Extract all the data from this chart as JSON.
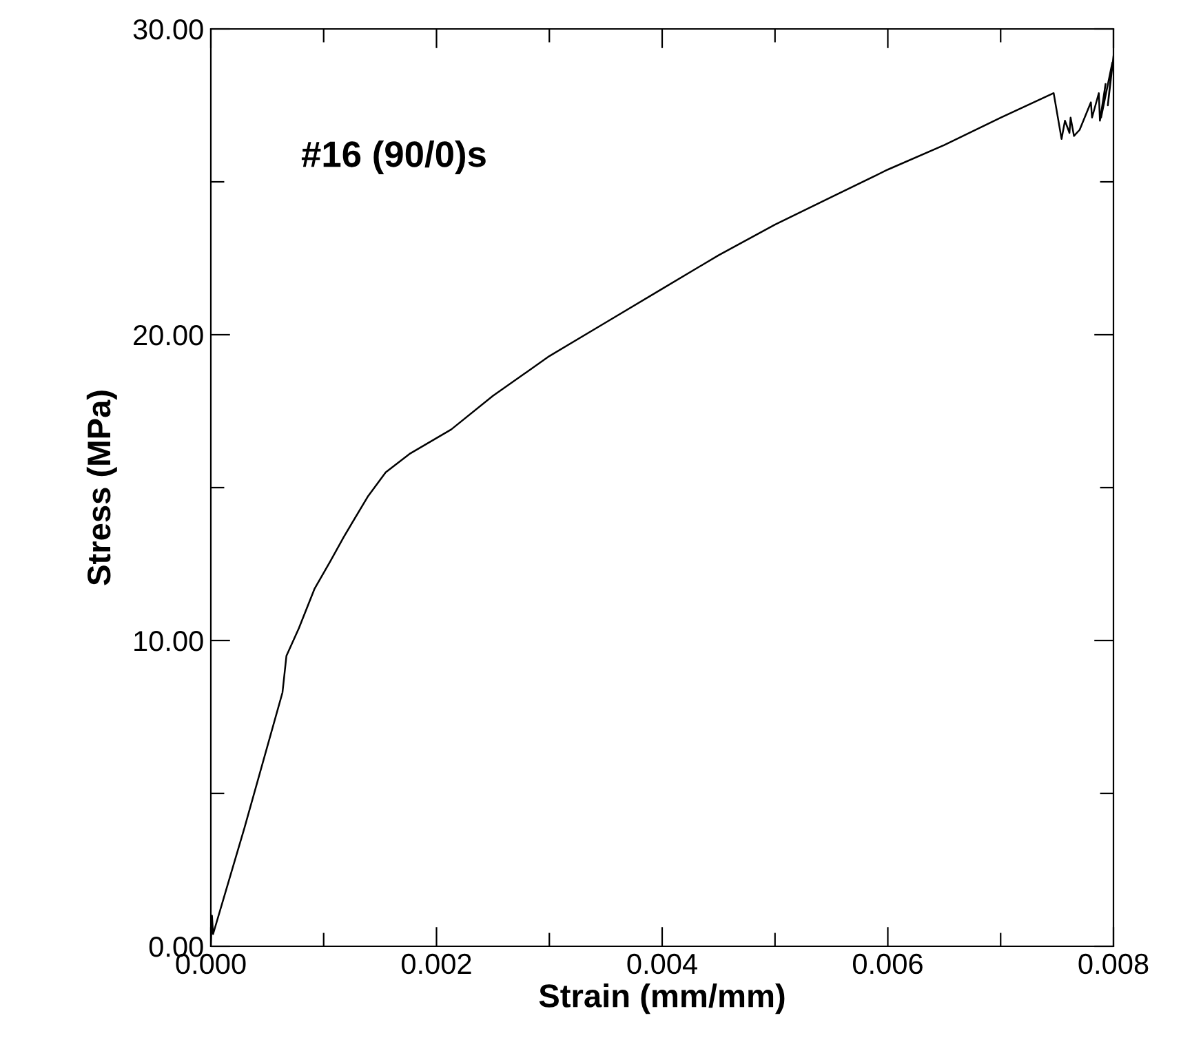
{
  "chart_data": {
    "type": "line",
    "xlabel": "Strain (mm/mm)",
    "ylabel": "Stress (MPa)",
    "annotations": [
      "#16 (90/0)s"
    ],
    "xlim": [
      0,
      0.008
    ],
    "ylim": [
      0,
      30
    ],
    "xticks": [
      {
        "value": 0,
        "label": "0.000"
      },
      {
        "value": 0.001,
        "label": null
      },
      {
        "value": 0.002,
        "label": "0.002"
      },
      {
        "value": 0.003,
        "label": null
      },
      {
        "value": 0.004,
        "label": "0.004"
      },
      {
        "value": 0.005,
        "label": null
      },
      {
        "value": 0.006,
        "label": "0.006"
      },
      {
        "value": 0.007,
        "label": null
      },
      {
        "value": 0.008,
        "label": "0.008"
      }
    ],
    "yticks": [
      {
        "value": 0,
        "label": "0.00"
      },
      {
        "value": 5,
        "label": null
      },
      {
        "value": 10,
        "label": "10.00"
      },
      {
        "value": 15,
        "label": null
      },
      {
        "value": 20,
        "label": "20.00"
      },
      {
        "value": 25,
        "label": null
      },
      {
        "value": 30,
        "label": "30.00"
      }
    ],
    "grid": false,
    "marker": "none",
    "line_style": "solid",
    "series": [
      {
        "color": "#000000",
        "x": [
          0,
          1e-05,
          2e-05,
          0.0001,
          0.0003,
          0.000635,
          0.00067,
          0.00078,
          0.00092,
          0.00106,
          0.00118,
          0.00139,
          0.00155,
          0.00176,
          0.00213,
          0.0025,
          0.003,
          0.0035,
          0.004,
          0.0045,
          0.005,
          0.0055,
          0.006,
          0.0065,
          0.007,
          0.00747,
          0.00754,
          0.00757,
          0.00761,
          0.00762,
          0.00765,
          0.0077,
          0.0078,
          0.00781,
          0.00787,
          0.00788,
          0.00793,
          0.00789,
          0.00799,
          0.00795,
          0.008
        ],
        "values": [
          0,
          1.0,
          0.4,
          1.4,
          3.9,
          8.3,
          9.5,
          10.4,
          11.7,
          12.6,
          13.4,
          14.7,
          15.5,
          16.1,
          16.9,
          18.0,
          19.3,
          20.4,
          21.5,
          22.6,
          23.6,
          24.5,
          25.4,
          26.2,
          27.1,
          27.9,
          26.4,
          27.0,
          26.6,
          27.1,
          26.5,
          26.7,
          27.6,
          27.1,
          27.9,
          27.0,
          28.2,
          27.1,
          28.9,
          27.5,
          29.1
        ]
      }
    ]
  }
}
